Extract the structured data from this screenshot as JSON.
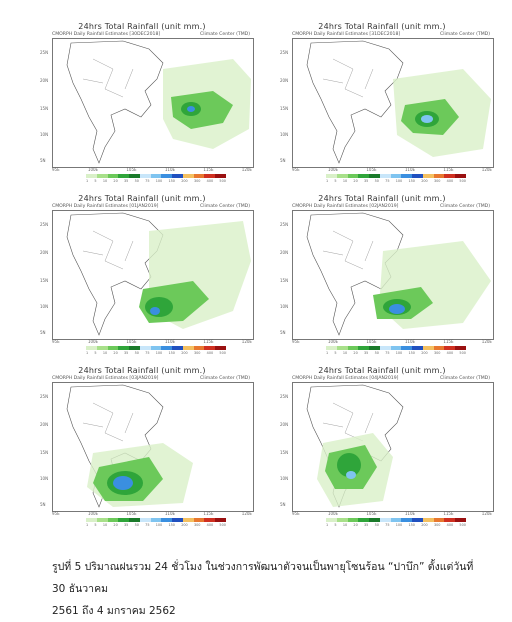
{
  "panels": [
    {
      "title": "24hrs Total Rainfall (unit mm.)",
      "left": "CMORPH Daily Rainfall Estimates [30DEC2018]",
      "right": "Climate Center (TMD)"
    },
    {
      "title": "24hrs Total Rainfall (unit mm.)",
      "left": "CMORPH Daily Rainfall Estimates [31DEC2018]",
      "right": "Climate Center (TMD)"
    },
    {
      "title": "24hrs Total Rainfall (unit mm.)",
      "left": "CMORPH Daily Rainfall Estimates [01JAN2019]",
      "right": "Climate Center (TMD)"
    },
    {
      "title": "24hrs Total Rainfall (unit mm.)",
      "left": "CMORPH Daily Rainfall Estimates [02JAN2019]",
      "right": "Climate Center (TMD)"
    },
    {
      "title": "24hrs Total Rainfall (unit mm.)",
      "left": "CMORPH Daily Rainfall Estimates [03JAN2019]",
      "right": "Climate Center (TMD)"
    },
    {
      "title": "24hrs Total Rainfall (unit mm.)",
      "left": "CMORPH Daily Rainfall Estimates [04JAN2019]",
      "right": "Climate Center (TMD)"
    }
  ],
  "lat_labels": [
    "25N",
    "20N",
    "15N",
    "10N",
    "5N"
  ],
  "lon_labels": [
    "95E",
    "100E",
    "105E",
    "110E",
    "115E",
    "120E"
  ],
  "colorbar": {
    "colors": [
      "#d9f0c8",
      "#a8e08a",
      "#6cc95a",
      "#2fa53a",
      "#1a7a2a",
      "#c8e6fa",
      "#7fc4f0",
      "#3a8fe0",
      "#2050c0",
      "#f4c060",
      "#e87830",
      "#d03020",
      "#9a1010"
    ],
    "labels": [
      "1",
      "5",
      "10",
      "20",
      "35",
      "50",
      "75",
      "100",
      "150",
      "200",
      "300",
      "400",
      "500"
    ]
  },
  "caption": {
    "line1": "รูปที่ 5 ปริมาณฝนรวม 24 ชั่วโมง ในช่วงการพัฒนาตัวจนเป็นพายุโซนร้อน “ปาบึก” ตั้งแต่วันที่ 30 ธันวาคม",
    "line2": "2561 ถึง 4 มกราคม 2562"
  }
}
